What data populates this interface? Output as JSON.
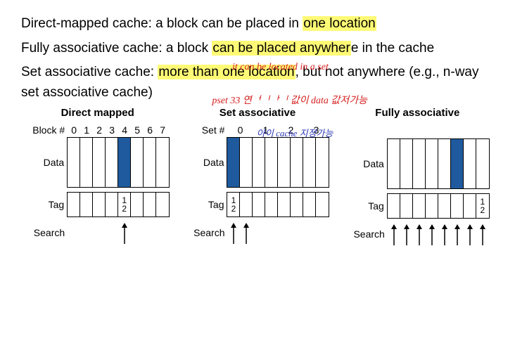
{
  "text": {
    "line1_a": "Direct-mapped cache: a block can be placed in ",
    "line1_hl": "one location",
    "line2_a": "Fully associative cache: a block ",
    "line2_hl": "can be placed anywher",
    "line2_b": "e in the cache",
    "line3_a": "Set associative cache: ",
    "line3_hl": "more than one location",
    "line3_b": ", but not anywhere   (e.g., n-way set associative cache)",
    "hand_red1": "it can be located in a set",
    "hand_red2": "pset 33 연ᅥᅵᅡᅵ 값이 data 값저가능",
    "hand_blue": "아이 cache 지정가능"
  },
  "cols": {
    "dm": {
      "title": "Direct mapped",
      "numlabel": "Block #",
      "nums": [
        "0",
        "1",
        "2",
        "3",
        "4",
        "5",
        "6",
        "7"
      ],
      "cellW": 18,
      "dataH": 70,
      "tagH": 34,
      "filled": [
        4
      ],
      "tag12": [
        4
      ],
      "arrows": [
        4
      ]
    },
    "sa": {
      "title": "Set associative",
      "numlabel": "Set #",
      "nums": [
        "0",
        "1",
        "2",
        "3"
      ],
      "pairW": 36,
      "cellW": 18,
      "dataH": 70,
      "tagH": 34,
      "filled": [
        0
      ],
      "tag12": [
        0
      ],
      "arrows": [
        0,
        1
      ]
    },
    "fa": {
      "title": "Fully associative",
      "numlabel": "",
      "cellW": 18,
      "dataH": 70,
      "tagH": 34,
      "n": 8,
      "filled": [
        5
      ],
      "tag12": [
        7
      ],
      "arrows": [
        0,
        1,
        2,
        3,
        4,
        5,
        6,
        7
      ]
    }
  },
  "labels": {
    "data": "Data",
    "tag": "Tag",
    "search": "Search"
  },
  "colors": {
    "fill": "#1f5a9e",
    "border": "#000000",
    "bg": "#ffffff"
  }
}
